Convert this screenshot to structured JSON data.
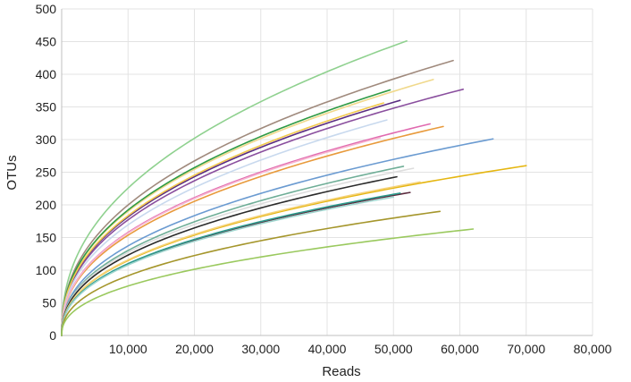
{
  "chart_data": {
    "type": "line",
    "title": "",
    "xlabel": "Reads",
    "ylabel": "OTUs",
    "xlim": [
      0,
      80000
    ],
    "ylim": [
      0,
      500
    ],
    "xticks": [
      10000,
      20000,
      30000,
      40000,
      50000,
      60000,
      70000,
      80000
    ],
    "xtick_labels": [
      "10,000",
      "20,000",
      "30,000",
      "40,000",
      "50,000",
      "60,000",
      "70,000",
      "80,000"
    ],
    "yticks": [
      0,
      50,
      100,
      150,
      200,
      250,
      300,
      350,
      400,
      450,
      500
    ],
    "ytick_labels": [
      "0",
      "50",
      "100",
      "150",
      "200",
      "250",
      "300",
      "350",
      "400",
      "450",
      "500"
    ],
    "grid": true,
    "legend": "none",
    "series": [
      {
        "color": "#8fd18f",
        "max_reads": 52000,
        "max_otus": 451
      },
      {
        "color": "#a08a7d",
        "max_reads": 59000,
        "max_otus": 421
      },
      {
        "color": "#f0d98c",
        "max_reads": 56000,
        "max_otus": 392
      },
      {
        "color": "#2e9a44",
        "max_reads": 49500,
        "max_otus": 376
      },
      {
        "color": "#8a4f9e",
        "max_reads": 60500,
        "max_otus": 377
      },
      {
        "color": "#5a2d82",
        "max_reads": 51000,
        "max_otus": 360
      },
      {
        "color": "#f2c94c",
        "max_reads": 48500,
        "max_otus": 356
      },
      {
        "color": "#c8d9ee",
        "max_reads": 49000,
        "max_otus": 330
      },
      {
        "color": "#e06ab0",
        "max_reads": 55500,
        "max_otus": 324
      },
      {
        "color": "#e89a3c",
        "max_reads": 57500,
        "max_otus": 320
      },
      {
        "color": "#6b9bd1",
        "max_reads": 65000,
        "max_otus": 301
      },
      {
        "color": "#f7b6cf",
        "max_reads": 48000,
        "max_otus": 303
      },
      {
        "color": "#6fae97",
        "max_reads": 51500,
        "max_otus": 259
      },
      {
        "color": "#e5b611",
        "max_reads": 70000,
        "max_otus": 260
      },
      {
        "color": "#dddddd",
        "max_reads": 53000,
        "max_otus": 256
      },
      {
        "color": "#2b2b2b",
        "max_reads": 50500,
        "max_otus": 243
      },
      {
        "color": "#f5d27a",
        "max_reads": 54000,
        "max_otus": 235
      },
      {
        "color": "#5c2b3e",
        "max_reads": 52500,
        "max_otus": 219
      },
      {
        "color": "#2b9a8c",
        "max_reads": 51000,
        "max_otus": 218
      },
      {
        "color": "#9fd6cf",
        "max_reads": 50000,
        "max_otus": 212
      },
      {
        "color": "#a5962c",
        "max_reads": 57000,
        "max_otus": 190
      },
      {
        "color": "#9ac95e",
        "max_reads": 62000,
        "max_otus": 163
      }
    ]
  }
}
